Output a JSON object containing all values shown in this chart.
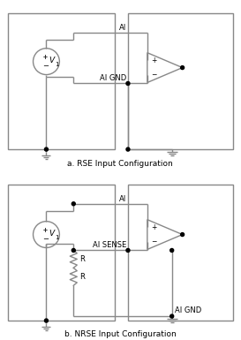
{
  "fig_width": 2.73,
  "fig_height": 3.85,
  "dpi": 100,
  "bg_color": "#ffffff",
  "line_color": "#888888",
  "text_color": "#000000",
  "title_a": "a. RSE Input Configuration",
  "title_b": "b. NRSE Input Configuration",
  "label_AI": "AI",
  "label_AIGND": "AI GND",
  "label_AISENSE": "AI SENSE",
  "label_R": "R"
}
